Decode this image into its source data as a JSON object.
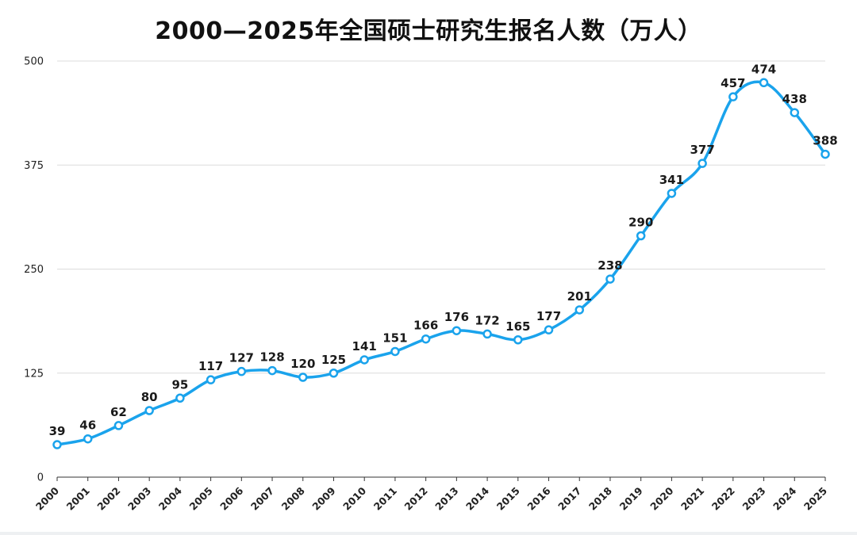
{
  "chart_data": {
    "type": "line",
    "title": "2000—2025年全国硕士研究生报名人数（万人）",
    "xlabel": "",
    "ylabel": "",
    "x": [
      "2000",
      "2001",
      "2002",
      "2003",
      "2004",
      "2005",
      "2006",
      "2007",
      "2008",
      "2009",
      "2010",
      "2011",
      "2012",
      "2013",
      "2014",
      "2015",
      "2016",
      "2017",
      "2018",
      "2019",
      "2020",
      "2021",
      "2022",
      "2023",
      "2024",
      "2025"
    ],
    "series": [
      {
        "values": [
          39,
          46,
          62,
          80,
          95,
          117,
          127,
          128,
          120,
          125,
          141,
          151,
          166,
          176,
          172,
          165,
          177,
          201,
          238,
          290,
          341,
          377,
          457,
          474,
          438,
          388
        ]
      }
    ],
    "ylim": [
      0,
      500
    ],
    "yticks": [
      0,
      125,
      250,
      375,
      500
    ],
    "grid": true,
    "line_color": "#1aa3ec",
    "marker": "hollow-circle",
    "data_labels": true
  }
}
